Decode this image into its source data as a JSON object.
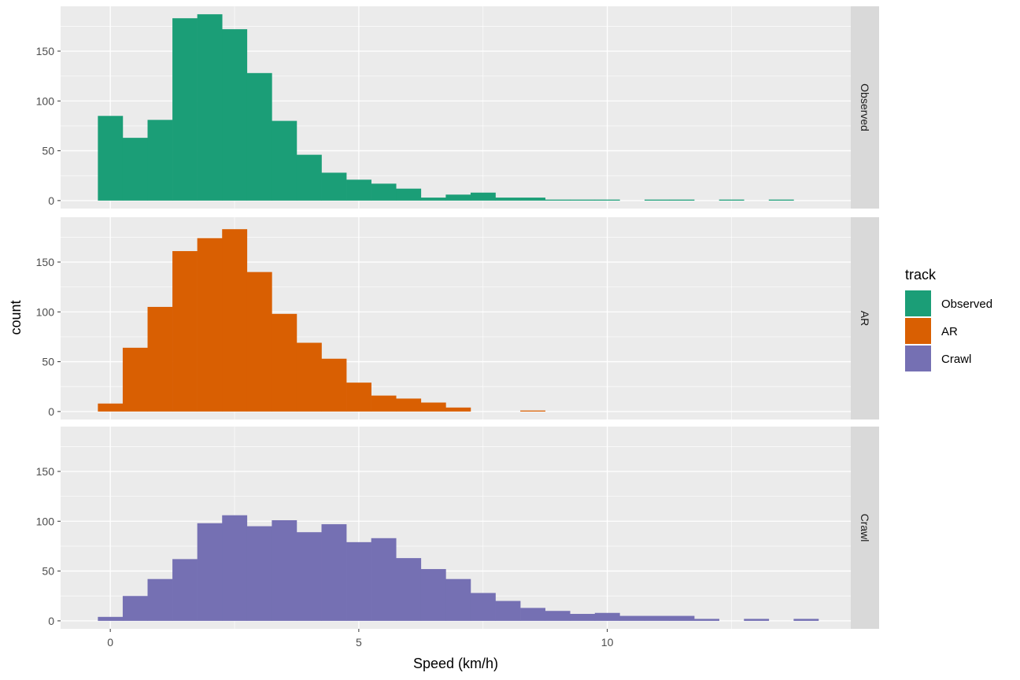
{
  "chart_data": {
    "type": "bar",
    "subtype": "faceted-histogram",
    "xlabel": "Speed (km/h)",
    "ylabel": "count",
    "xlim": [
      -1.0,
      14.9
    ],
    "ylim": [
      -8,
      195
    ],
    "x_ticks": [
      0,
      5,
      10
    ],
    "y_ticks": [
      0,
      50,
      100,
      150
    ],
    "bin_width": 0.5,
    "grid": true,
    "legend": {
      "title": "track",
      "position": "right",
      "entries": [
        {
          "label": "Observed",
          "color": "#1b9e77"
        },
        {
          "label": "AR",
          "color": "#d95f02"
        },
        {
          "label": "Crawl",
          "color": "#7570b3"
        }
      ]
    },
    "series": [
      {
        "name": "Observed",
        "facet_label": "Observed",
        "color": "#1b9e77",
        "bin_starts": [
          -0.25,
          0.25,
          0.75,
          1.25,
          1.75,
          2.25,
          2.75,
          3.25,
          3.75,
          4.25,
          4.75,
          5.25,
          5.75,
          6.25,
          6.75,
          7.25,
          7.75,
          8.25,
          8.75,
          9.25,
          9.75,
          10.25,
          10.75,
          11.25,
          11.75,
          12.25,
          12.75,
          13.25,
          13.75
        ],
        "values": [
          85,
          63,
          81,
          183,
          187,
          172,
          128,
          80,
          46,
          28,
          21,
          17,
          12,
          3,
          6,
          8,
          3,
          3,
          1,
          1,
          1,
          0,
          1,
          1,
          0,
          1,
          0,
          1,
          0
        ]
      },
      {
        "name": "AR",
        "facet_label": "AR",
        "color": "#d95f02",
        "bin_starts": [
          -0.25,
          0.25,
          0.75,
          1.25,
          1.75,
          2.25,
          2.75,
          3.25,
          3.75,
          4.25,
          4.75,
          5.25,
          5.75,
          6.25,
          6.75,
          7.25,
          7.75,
          8.25
        ],
        "values": [
          8,
          64,
          105,
          161,
          174,
          183,
          140,
          98,
          69,
          53,
          29,
          16,
          13,
          9,
          4,
          0,
          0,
          1
        ]
      },
      {
        "name": "Crawl",
        "facet_label": "Crawl",
        "color": "#7570b3",
        "bin_starts": [
          -0.25,
          0.25,
          0.75,
          1.25,
          1.75,
          2.25,
          2.75,
          3.25,
          3.75,
          4.25,
          4.75,
          5.25,
          5.75,
          6.25,
          6.75,
          7.25,
          7.75,
          8.25,
          8.75,
          9.25,
          9.75,
          10.25,
          10.75,
          11.25,
          11.75,
          12.25,
          12.75,
          13.25,
          13.75
        ],
        "values": [
          4,
          25,
          42,
          62,
          98,
          106,
          95,
          101,
          89,
          97,
          79,
          83,
          63,
          52,
          42,
          28,
          20,
          13,
          10,
          7,
          8,
          5,
          5,
          5,
          2,
          0,
          2,
          0,
          2
        ]
      }
    ]
  }
}
